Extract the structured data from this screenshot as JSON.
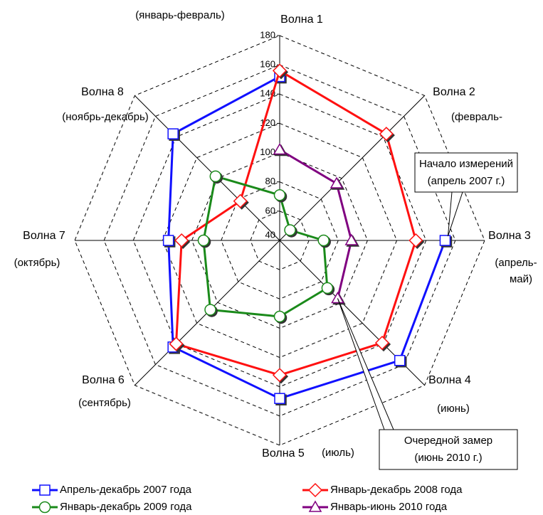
{
  "chart_data": {
    "type": "radar",
    "categories": [
      "Волна 1",
      "Волна 2",
      "Волна 3",
      "Волна 4",
      "Волна 5",
      "Волна 6",
      "Волна 7",
      "Волна 8"
    ],
    "sublabels": [
      [
        "(январь-февраль)"
      ],
      [
        "(февраль-"
      ],
      [
        "(апрель-",
        "май)"
      ],
      [
        "(июнь)"
      ],
      [
        "(июль)"
      ],
      [
        "(сентябрь)"
      ],
      [
        "(октябрь)"
      ],
      [
        "(ноябрь-декабрь)"
      ]
    ],
    "ylim": [
      40,
      180
    ],
    "yticks": [
      40,
      60,
      80,
      100,
      120,
      140,
      160,
      180
    ],
    "grid": true,
    "series": [
      {
        "name": "Апрель-декабрь 2007 года",
        "color": "#1010ff",
        "marker": "square",
        "values": [
          152,
          null,
          153,
          156,
          148,
          143,
          116,
          143
        ]
      },
      {
        "name": "Январь-декабрь 2008 года",
        "color": "#ff1010",
        "marker": "diamond",
        "values": [
          156,
          143,
          133,
          139,
          132,
          140,
          107,
          78
        ]
      },
      {
        "name": "Январь-декабрь 2009 года",
        "color": "#1a8a1a",
        "marker": "circle",
        "values": [
          71,
          50,
          70,
          86,
          92,
          107,
          92,
          102
        ]
      },
      {
        "name": "Январь-июнь 2010 года",
        "color": "#800080",
        "marker": "triangle",
        "values": [
          102,
          95,
          89,
          96,
          null,
          null,
          null,
          null
        ]
      }
    ],
    "legend": "bottom",
    "annotations": [
      {
        "lines": [
          "Начало измерений",
          "(апрель 2007 г.)"
        ]
      },
      {
        "lines": [
          "Очередной замер",
          "(июнь 2010 г.)"
        ]
      }
    ]
  }
}
